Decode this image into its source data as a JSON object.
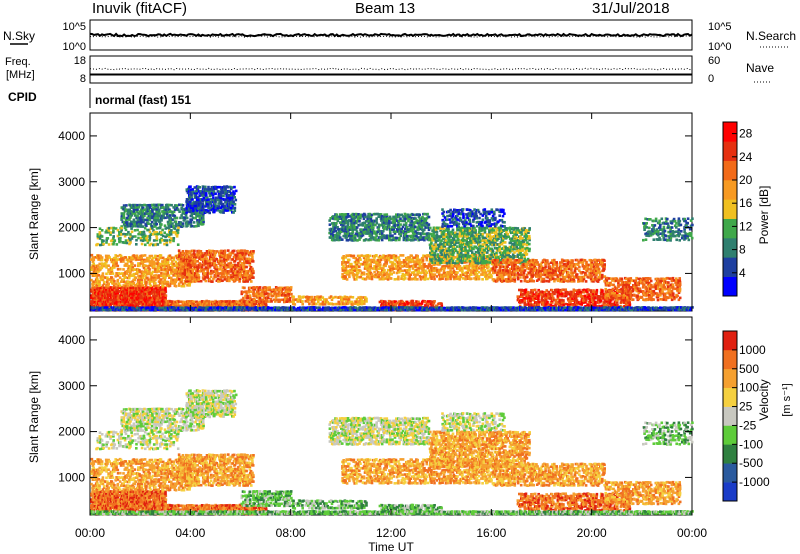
{
  "header": {
    "station": "Inuvik (fitACF)",
    "beam": "Beam 13",
    "date": "31/Jul/2018"
  },
  "noise_panel": {
    "left_label": "N.Sky",
    "left_ticks": [
      "10^5",
      "10^0"
    ],
    "right_ticks": [
      "10^5",
      "10^0"
    ],
    "right_label": "N.Search"
  },
  "freq_panel": {
    "left_label_1": "Freq.",
    "left_label_2": "[MHz]",
    "left_ticks": [
      "18",
      "8"
    ],
    "right_ticks": [
      "60",
      "0"
    ],
    "right_label": "Nave"
  },
  "cpid": {
    "label": "CPID",
    "value": "normal (fast) 151"
  },
  "colors": {
    "power_scale": [
      "#0000ff",
      "#1e3fa0",
      "#2f7f6f",
      "#3fa84a",
      "#f0c020",
      "#f79a22",
      "#f26a18",
      "#e63010",
      "#ff0000"
    ],
    "velocity_scale": [
      "#1a3cc8",
      "#2a5a9e",
      "#2f8040",
      "#5ecc3a",
      "#c8c8c0",
      "#f5d040",
      "#f5a030",
      "#f07020",
      "#e02010"
    ]
  },
  "chart_data": [
    {
      "type": "heatmap",
      "title": "",
      "ylabel": "Slant Range [km]",
      "xlabel": "",
      "ylim": [
        180,
        4500
      ],
      "yticks": [
        "1000",
        "2000",
        "3000",
        "4000"
      ],
      "xticks": [],
      "colorbar": {
        "label": "Power [dB]",
        "ticks": [
          "4",
          "8",
          "12",
          "16",
          "20",
          "24",
          "28"
        ],
        "range": [
          0,
          30
        ]
      },
      "series": []
    },
    {
      "type": "heatmap",
      "title": "",
      "ylabel": "Slant Range [km]",
      "xlabel": "Time UT",
      "ylim": [
        180,
        4500
      ],
      "yticks": [
        "1000",
        "2000",
        "3000",
        "4000"
      ],
      "xticks": [
        "00:00",
        "04:00",
        "08:00",
        "12:00",
        "16:00",
        "20:00",
        "00:00"
      ],
      "colorbar": {
        "label": "Velocity",
        "unit_label": "[m s⁻¹]",
        "ticks": [
          "1000",
          "500",
          "100",
          "25",
          "-25",
          "-100",
          "-500",
          "-1000"
        ]
      },
      "series": []
    }
  ]
}
